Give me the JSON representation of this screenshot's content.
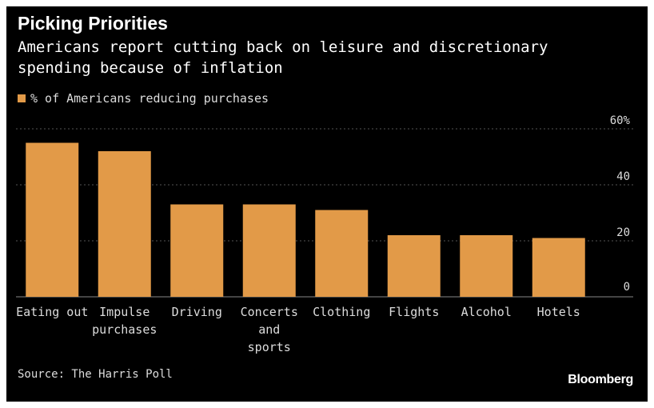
{
  "colors": {
    "background": "#000000",
    "bar": "#e29a48",
    "gridline": "#555555",
    "text": "#dddddd"
  },
  "source": "Source: The Harris Poll",
  "logo": "Bloomberg",
  "chart_data": {
    "type": "bar",
    "title": "Picking Priorities",
    "subtitle": "Americans report cutting back on leisure and discretionary spending because of inflation",
    "legend": "% of Americans reducing purchases",
    "legend_position": "top-left",
    "categories": [
      [
        "Eating out"
      ],
      [
        "Impulse",
        "purchases"
      ],
      [
        "Driving"
      ],
      [
        "Concerts",
        "and",
        "sports"
      ],
      [
        "Clothing"
      ],
      [
        "Flights"
      ],
      [
        "Alcohol"
      ],
      [
        "Hotels"
      ]
    ],
    "series": [
      {
        "name": "% of Americans reducing purchases",
        "values": [
          55,
          52,
          33,
          33,
          31,
          22,
          22,
          21
        ]
      }
    ],
    "ylim": [
      0,
      60
    ],
    "yticks": [
      "0",
      "20",
      "40",
      "60%"
    ],
    "ytick_values": [
      0,
      20,
      40,
      60
    ],
    "y_axis_side": "right",
    "grid": true
  }
}
